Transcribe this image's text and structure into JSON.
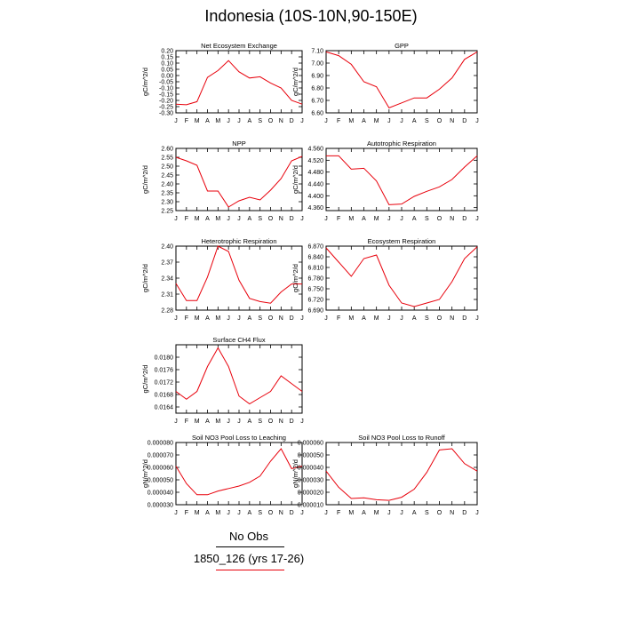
{
  "title": "Indonesia (10S-10N,90-150E)",
  "legend": {
    "obs_label": "No Obs",
    "case_label": "1850_126 (yrs 17-26)",
    "case_color": "#e8000b",
    "obs_color": "#000000"
  },
  "chart_data": [
    {
      "type": "line",
      "title": "Net Ecosystem Exchange",
      "ylabel": "gC/m^2/d",
      "x": [
        "J",
        "F",
        "M",
        "A",
        "M",
        "J",
        "J",
        "A",
        "S",
        "O",
        "N",
        "D",
        "J"
      ],
      "ylim": [
        -0.3,
        0.2
      ],
      "yticks": [
        "0.20",
        "0.15",
        "0.10",
        "0.05",
        "0.00",
        "-0.05",
        "-0.10",
        "-0.15",
        "-0.20",
        "-0.25",
        "-0.30"
      ],
      "series": [
        {
          "values": [
            -0.23,
            -0.235,
            -0.21,
            -0.015,
            0.04,
            0.12,
            0.03,
            -0.02,
            -0.01,
            -0.06,
            -0.1,
            -0.2,
            -0.23
          ]
        }
      ]
    },
    {
      "type": "line",
      "title": "GPP",
      "ylabel": "gC/m^2/d",
      "x": [
        "J",
        "F",
        "M",
        "A",
        "M",
        "J",
        "J",
        "A",
        "S",
        "O",
        "N",
        "D",
        "J"
      ],
      "ylim": [
        6.6,
        7.1
      ],
      "yticks": [
        "7.10",
        "7.00",
        "6.90",
        "6.80",
        "6.70",
        "6.60"
      ],
      "series": [
        {
          "values": [
            7.09,
            7.06,
            6.99,
            6.85,
            6.81,
            6.64,
            6.68,
            6.72,
            6.72,
            6.79,
            6.88,
            7.03,
            7.09
          ]
        }
      ]
    },
    {
      "type": "line",
      "title": "NPP",
      "ylabel": "gC/m^2/d",
      "x": [
        "J",
        "F",
        "M",
        "A",
        "M",
        "J",
        "J",
        "A",
        "S",
        "O",
        "N",
        "D",
        "J"
      ],
      "ylim": [
        2.25,
        2.6
      ],
      "yticks": [
        "2.60",
        "2.55",
        "2.50",
        "2.45",
        "2.40",
        "2.35",
        "2.30",
        "2.25"
      ],
      "series": [
        {
          "values": [
            2.55,
            2.53,
            2.505,
            2.36,
            2.36,
            2.27,
            2.305,
            2.325,
            2.31,
            2.365,
            2.43,
            2.53,
            2.555
          ]
        }
      ]
    },
    {
      "type": "line",
      "title": "Autotrophic Respiration",
      "ylabel": "gC/m^2/d",
      "x": [
        "J",
        "F",
        "M",
        "A",
        "M",
        "J",
        "J",
        "A",
        "S",
        "O",
        "N",
        "D",
        "J"
      ],
      "ylim": [
        4.35,
        4.56
      ],
      "yticks": [
        "4.560",
        "4.520",
        "4.480",
        "4.440",
        "4.400",
        "4.360"
      ],
      "series": [
        {
          "values": [
            4.535,
            4.535,
            4.49,
            4.493,
            4.45,
            4.37,
            4.372,
            4.398,
            4.415,
            4.43,
            4.455,
            4.497,
            4.535
          ]
        }
      ]
    },
    {
      "type": "line",
      "title": "Heterotrophic Respiration",
      "ylabel": "gC/m^2/d",
      "x": [
        "J",
        "F",
        "M",
        "A",
        "M",
        "J",
        "J",
        "A",
        "S",
        "O",
        "N",
        "D",
        "J"
      ],
      "ylim": [
        2.28,
        2.4
      ],
      "yticks": [
        "2.40",
        "2.37",
        "2.34",
        "2.31",
        "2.28"
      ],
      "series": [
        {
          "values": [
            2.33,
            2.298,
            2.298,
            2.342,
            2.4,
            2.39,
            2.336,
            2.302,
            2.296,
            2.293,
            2.314,
            2.329,
            2.329
          ]
        }
      ]
    },
    {
      "type": "line",
      "title": "Ecosystem Respiration",
      "ylabel": "gC/m^2/d",
      "x": [
        "J",
        "F",
        "M",
        "A",
        "M",
        "J",
        "J",
        "A",
        "S",
        "O",
        "N",
        "D",
        "J"
      ],
      "ylim": [
        6.69,
        6.87
      ],
      "yticks": [
        "6.870",
        "6.840",
        "6.810",
        "6.780",
        "6.750",
        "6.720",
        "6.690"
      ],
      "series": [
        {
          "values": [
            6.865,
            6.825,
            6.785,
            6.835,
            6.845,
            6.76,
            6.71,
            6.7,
            6.71,
            6.72,
            6.77,
            6.835,
            6.868
          ]
        }
      ]
    },
    {
      "type": "line",
      "title": "Surface CH4 Flux",
      "ylabel": "gC/m^2/d",
      "x": [
        "J",
        "F",
        "M",
        "A",
        "M",
        "J",
        "J",
        "A",
        "S",
        "O",
        "N",
        "D",
        "J"
      ],
      "ylim": [
        0.0162,
        0.0184
      ],
      "yticks": [
        "0.0180",
        "0.0176",
        "0.0172",
        "0.0168",
        "0.0164"
      ],
      "series": [
        {
          "values": [
            0.0169,
            0.01665,
            0.0169,
            0.0177,
            0.0183,
            0.0177,
            0.01675,
            0.0165,
            0.0167,
            0.0169,
            0.0174,
            0.01715,
            0.0169
          ]
        }
      ]
    },
    {
      "type": "line",
      "title": "Soil NO3 Pool Loss to Leaching",
      "ylabel": "gN/m^2/d",
      "x": [
        "J",
        "F",
        "M",
        "A",
        "M",
        "J",
        "J",
        "A",
        "S",
        "O",
        "N",
        "D",
        "J"
      ],
      "ylim": [
        3e-05,
        8e-05
      ],
      "yticks": [
        "0.000080",
        "0.000070",
        "0.000060",
        "0.000050",
        "0.000040",
        "0.000030"
      ],
      "series": [
        {
          "values": [
            6.1e-05,
            4.7e-05,
            3.8e-05,
            3.8e-05,
            4.1e-05,
            4.3e-05,
            4.5e-05,
            4.8e-05,
            5.3e-05,
            6.5e-05,
            7.5e-05,
            5.9e-05,
            6.1e-05
          ]
        }
      ]
    },
    {
      "type": "line",
      "title": "Soil NO3 Pool Loss to Runoff",
      "ylabel": "gN/m^2/d",
      "x": [
        "J",
        "F",
        "M",
        "A",
        "M",
        "J",
        "J",
        "A",
        "S",
        "O",
        "N",
        "D",
        "J"
      ],
      "ylim": [
        1e-05,
        6e-05
      ],
      "yticks": [
        "0.000060",
        "0.000050",
        "0.000040",
        "0.000030",
        "0.000020",
        "0.000010"
      ],
      "series": [
        {
          "values": [
            3.7e-05,
            2.4e-05,
            1.5e-05,
            1.55e-05,
            1.4e-05,
            1.35e-05,
            1.6e-05,
            2.25e-05,
            3.6e-05,
            5.4e-05,
            5.5e-05,
            4.3e-05,
            3.7e-05
          ]
        }
      ]
    }
  ]
}
